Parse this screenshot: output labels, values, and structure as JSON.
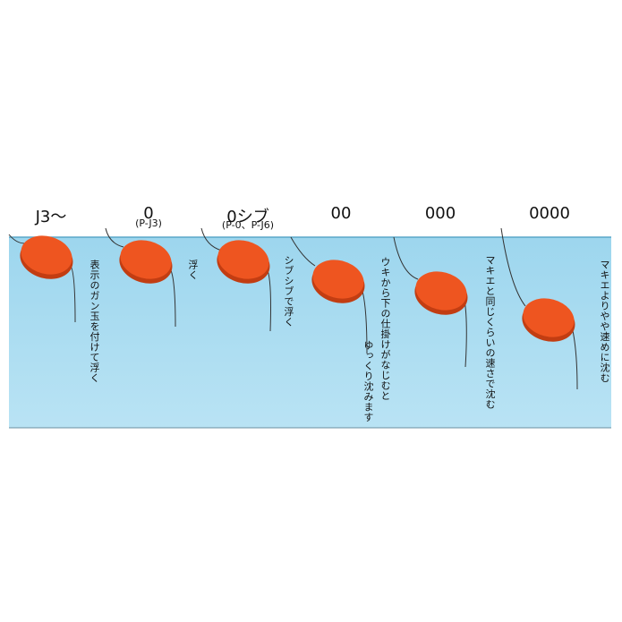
{
  "columns": [
    {
      "label": "J3～",
      "notes": [
        "表示のガン玉を付けて浮く"
      ]
    },
    {
      "label": "0",
      "sublabel": "(P-J3)",
      "notes": [
        "浮く"
      ]
    },
    {
      "label": "0シブ",
      "sublabel": "(P-0、P-J6)",
      "notes": [
        "シブシブで浮く"
      ]
    },
    {
      "label": "00",
      "notes": [
        "ウキから下の仕掛けがなじむと",
        "ゆっくり沈みます"
      ]
    },
    {
      "label": "000",
      "notes": [
        "マキエと同じくらいの速さで沈む"
      ]
    },
    {
      "label": "0000",
      "notes": [
        "マキエよりやや速めに沈む"
      ]
    }
  ]
}
